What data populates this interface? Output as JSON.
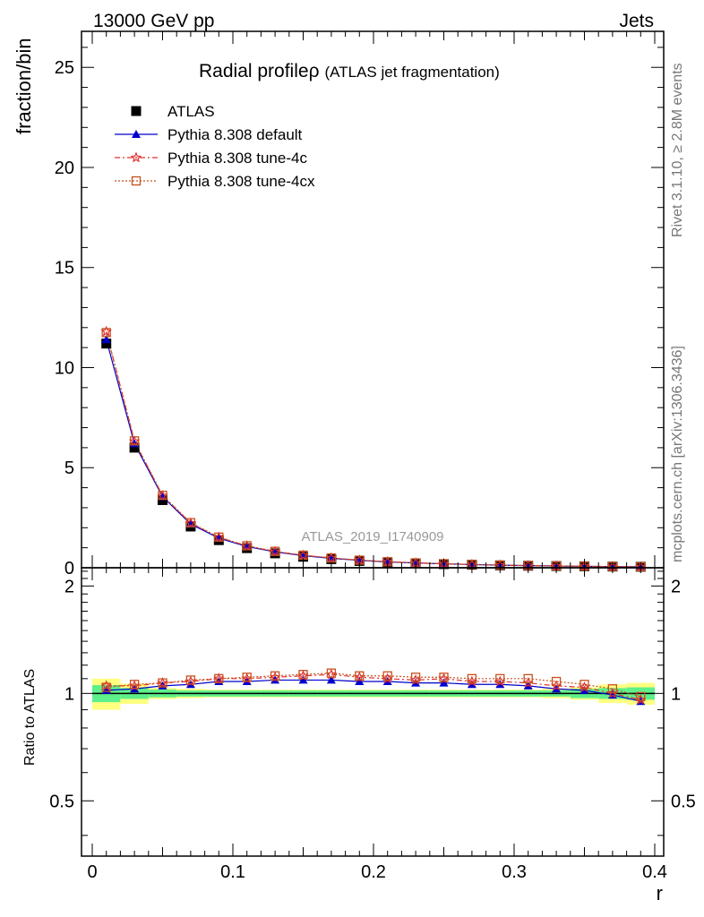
{
  "header": {
    "left": "13000 GeV pp",
    "right": "Jets"
  },
  "side_labels": {
    "rivet": "Rivet 3.1.10, ≥ 2.8M events",
    "mcplots": "mcplots.cern.ch [arXiv:1306.3436]"
  },
  "title": {
    "main": "Radial profileρ",
    "sub": "(ATLAS jet fragmentation)"
  },
  "watermark": "ATLAS_2019_I1740909",
  "colors": {
    "data": "#000000",
    "default": "#0000cc",
    "tune4c": "#e03030",
    "tune4cx": "#c8501e",
    "band_inner": "#5ef08a",
    "band_outer": "#ffff80"
  },
  "chart_data": [
    {
      "type": "scatter",
      "panel": "main",
      "ylabel": "fraction/bin",
      "xlim": [
        0,
        0.4
      ],
      "ylim": [
        0,
        26.8
      ],
      "yticks": [
        0,
        5,
        10,
        15,
        20,
        25
      ],
      "x": [
        0.01,
        0.03,
        0.05,
        0.07,
        0.09,
        0.11,
        0.13,
        0.15,
        0.17,
        0.19,
        0.21,
        0.23,
        0.25,
        0.27,
        0.29,
        0.31,
        0.33,
        0.35,
        0.37,
        0.39
      ],
      "series": [
        {
          "name": "ATLAS",
          "marker": "square",
          "values": [
            11.2,
            6.0,
            3.38,
            2.06,
            1.38,
            0.98,
            0.72,
            0.55,
            0.43,
            0.34,
            0.27,
            0.22,
            0.18,
            0.15,
            0.12,
            0.1,
            0.085,
            0.07,
            0.058,
            0.048
          ]
        },
        {
          "name": "Pythia 8.308 default",
          "marker": "triangle",
          "values": [
            11.4,
            6.2,
            3.55,
            2.18,
            1.48,
            1.06,
            0.79,
            0.6,
            0.47,
            0.37,
            0.29,
            0.24,
            0.195,
            0.16,
            0.13,
            0.105,
            0.088,
            0.072,
            0.057,
            0.046
          ]
        },
        {
          "name": "Pythia 8.308 tune-4c",
          "marker": "star",
          "values": [
            11.8,
            6.32,
            3.6,
            2.23,
            1.52,
            1.09,
            0.81,
            0.62,
            0.49,
            0.38,
            0.3,
            0.24,
            0.2,
            0.163,
            0.131,
            0.107,
            0.089,
            0.073,
            0.059,
            0.046
          ]
        },
        {
          "name": "Pythia 8.308 tune-4cx",
          "marker": "open-square",
          "values": [
            11.75,
            6.34,
            3.62,
            2.25,
            1.53,
            1.1,
            0.82,
            0.63,
            0.49,
            0.38,
            0.3,
            0.245,
            0.202,
            0.164,
            0.133,
            0.109,
            0.092,
            0.075,
            0.06,
            0.047
          ]
        }
      ]
    },
    {
      "type": "line",
      "panel": "ratio",
      "ylabel": "Ratio to ATLAS",
      "xlabel": "r",
      "xlim": [
        0,
        0.4
      ],
      "ylim": [
        0.35,
        2.25
      ],
      "yticks": [
        0.5,
        1,
        2
      ],
      "xticks": [
        0,
        0.1,
        0.2,
        0.3,
        0.4
      ],
      "x": [
        0.01,
        0.03,
        0.05,
        0.07,
        0.09,
        0.11,
        0.13,
        0.15,
        0.17,
        0.19,
        0.21,
        0.23,
        0.25,
        0.27,
        0.29,
        0.31,
        0.33,
        0.35,
        0.37,
        0.39
      ],
      "band_inner": [
        0.055,
        0.035,
        0.025,
        0.02,
        0.02,
        0.02,
        0.02,
        0.02,
        0.02,
        0.02,
        0.02,
        0.02,
        0.02,
        0.02,
        0.02,
        0.02,
        0.02,
        0.03,
        0.035,
        0.04
      ],
      "band_outer": [
        0.1,
        0.065,
        0.035,
        0.03,
        0.025,
        0.025,
        0.025,
        0.025,
        0.025,
        0.025,
        0.025,
        0.025,
        0.025,
        0.025,
        0.025,
        0.025,
        0.03,
        0.04,
        0.06,
        0.07
      ],
      "series": [
        {
          "name": "Pythia 8.308 default",
          "marker": "triangle",
          "values": [
            1.02,
            1.03,
            1.05,
            1.06,
            1.08,
            1.08,
            1.09,
            1.09,
            1.09,
            1.08,
            1.08,
            1.07,
            1.07,
            1.06,
            1.06,
            1.05,
            1.03,
            1.02,
            0.99,
            0.95
          ]
        },
        {
          "name": "Pythia 8.308 tune-4c",
          "marker": "star",
          "values": [
            1.05,
            1.05,
            1.07,
            1.08,
            1.1,
            1.1,
            1.11,
            1.12,
            1.13,
            1.11,
            1.1,
            1.09,
            1.1,
            1.08,
            1.08,
            1.07,
            1.05,
            1.04,
            1.0,
            0.96
          ]
        },
        {
          "name": "Pythia 8.308 tune-4cx",
          "marker": "open-square",
          "values": [
            1.04,
            1.06,
            1.07,
            1.09,
            1.1,
            1.11,
            1.12,
            1.13,
            1.14,
            1.12,
            1.12,
            1.11,
            1.11,
            1.1,
            1.1,
            1.1,
            1.08,
            1.06,
            1.03,
            0.98
          ]
        }
      ]
    }
  ]
}
